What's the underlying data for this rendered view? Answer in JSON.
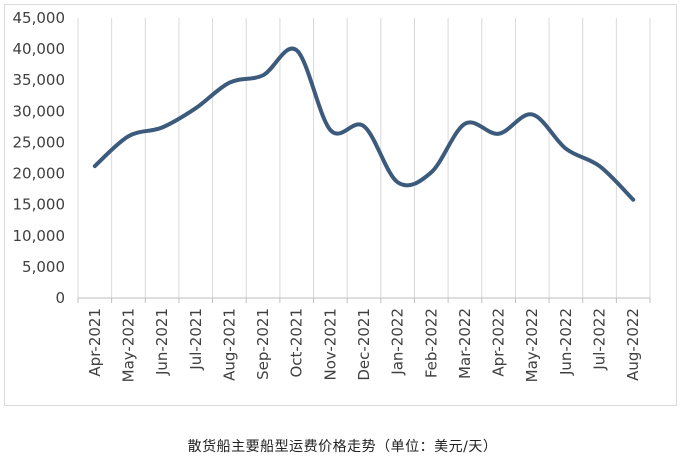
{
  "chart_data": {
    "type": "line",
    "title": "散货船主要船型运费价格走势（单位：美元/天）",
    "xlabel": "",
    "ylabel": "",
    "categories": [
      "Apr-2021",
      "May-2021",
      "Jun-2021",
      "Jul-2021",
      "Aug-2021",
      "Sep-2021",
      "Oct-2021",
      "Nov-2021",
      "Dec-2021",
      "Jan-2022",
      "Feb-2022",
      "Mar-2022",
      "Apr-2022",
      "May-2022",
      "Jun-2022",
      "Jul-2022",
      "Aug-2022"
    ],
    "series": [
      {
        "values": [
          21200,
          26000,
          27400,
          30500,
          34600,
          35800,
          39800,
          27000,
          27600,
          18600,
          20200,
          28000,
          26400,
          29500,
          24000,
          21200,
          15800
        ],
        "color": "#3b5a7c"
      }
    ],
    "ylim": [
      0,
      45000
    ],
    "yticks": [
      0,
      5000,
      10000,
      15000,
      20000,
      25000,
      30000,
      35000,
      40000,
      45000
    ],
    "ytick_labels": [
      "0",
      "5,000",
      "10,000",
      "15,000",
      "20,000",
      "25,000",
      "30,000",
      "35,000",
      "40,000",
      "45,000"
    ],
    "grid": true,
    "grid_axis": "x",
    "legend": "none",
    "smooth": true
  }
}
